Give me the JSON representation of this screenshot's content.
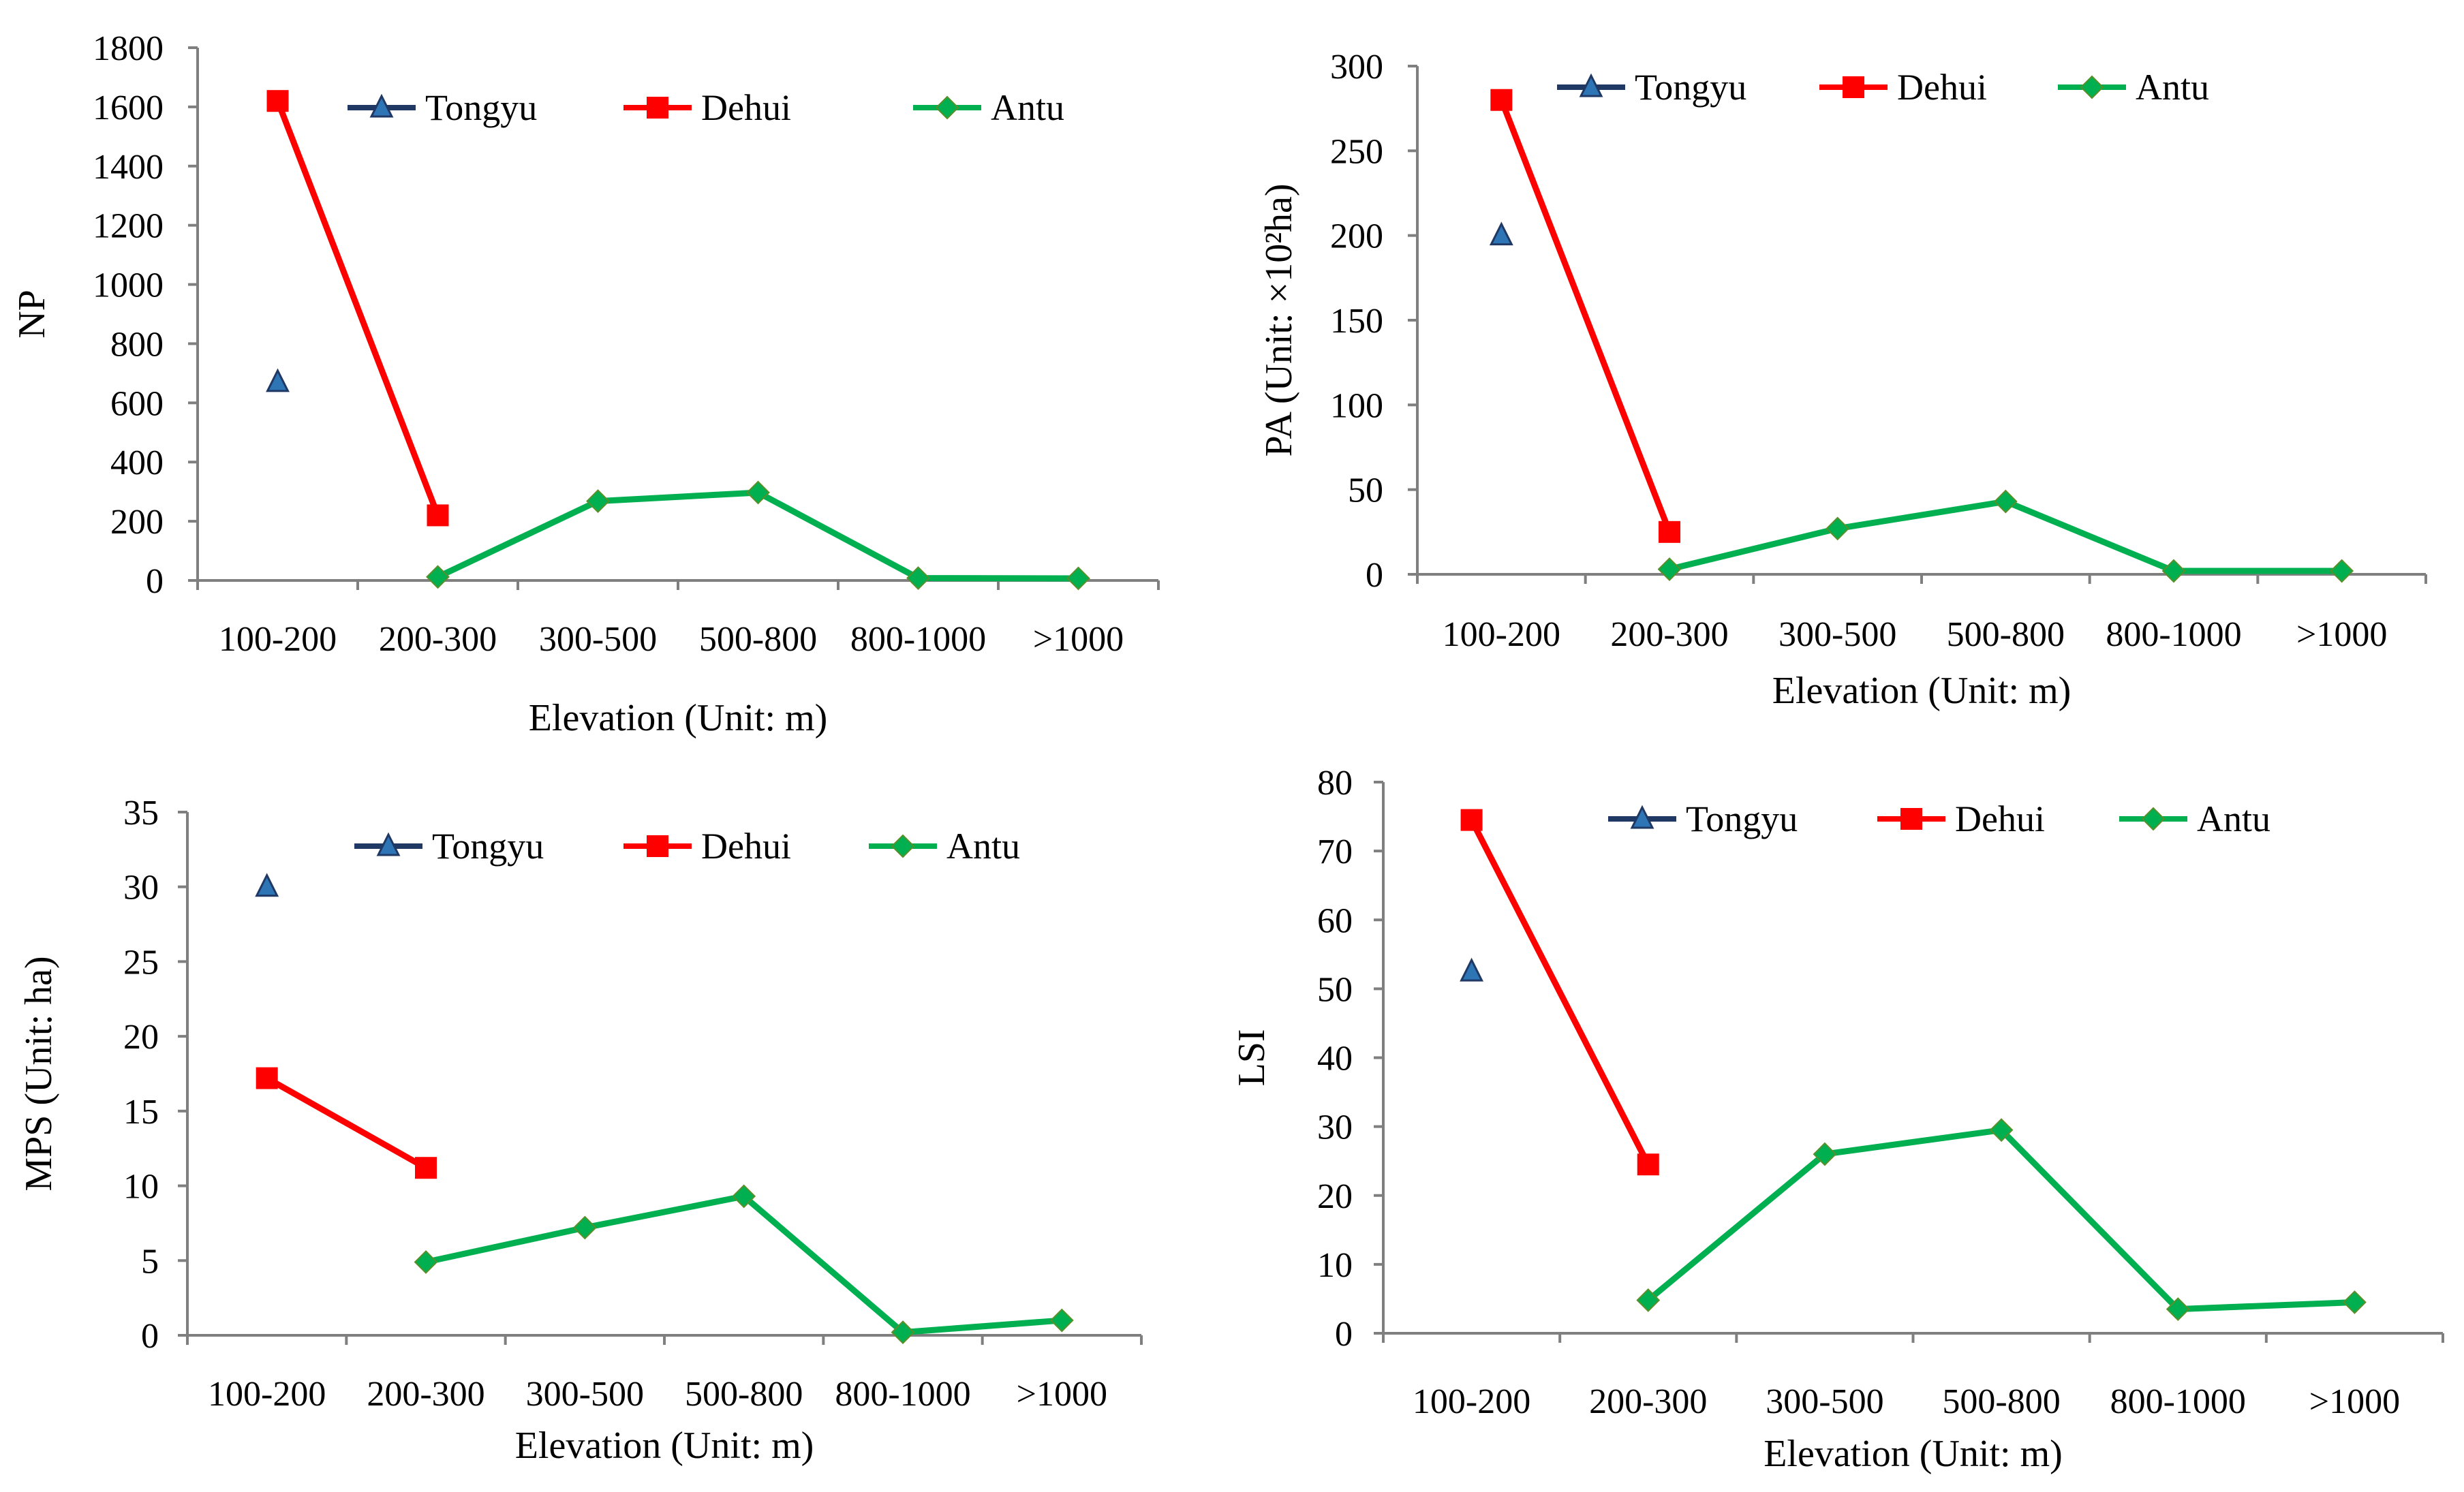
{
  "chart_data": [
    {
      "type": "line",
      "title": "",
      "xlabel": "Elevation (Unit: m)",
      "ylabel": "NP",
      "ylim": [
        0,
        1800
      ],
      "ytick_step": 200,
      "yticks": [
        "0",
        "200",
        "400",
        "600",
        "800",
        "1000",
        "1200",
        "1400",
        "1600",
        "1800"
      ],
      "categories": [
        "100-200",
        "200-300",
        "300-500",
        "500-800",
        "800-1000",
        ">1000"
      ],
      "legend_position": "top",
      "series": [
        {
          "name": "Tongyu",
          "color": "#2e75b6",
          "marker": "triangle",
          "values": [
            670,
            null,
            null,
            null,
            null,
            null
          ]
        },
        {
          "name": "Dehui",
          "color": "#ff0000",
          "marker": "square",
          "values": [
            1620,
            220,
            null,
            null,
            null,
            null
          ]
        },
        {
          "name": "Antu",
          "color": "#00b050",
          "marker": "diamond",
          "values": [
            null,
            12,
            268,
            297,
            8,
            7
          ]
        }
      ]
    },
    {
      "type": "line",
      "title": "",
      "xlabel": "Elevation (Unit: m)",
      "ylabel": "PA (Unit: ×10²ha)",
      "ylim": [
        0,
        300
      ],
      "ytick_step": 50,
      "yticks": [
        "0",
        "50",
        "100",
        "150",
        "200",
        "250",
        "300"
      ],
      "categories": [
        "100-200",
        "200-300",
        "300-500",
        "500-800",
        "800-1000",
        ">1000"
      ],
      "legend_position": "top",
      "series": [
        {
          "name": "Tongyu",
          "color": "#2e75b6",
          "marker": "triangle",
          "values": [
            200,
            null,
            null,
            null,
            null,
            null
          ]
        },
        {
          "name": "Dehui",
          "color": "#ff0000",
          "marker": "square",
          "values": [
            280,
            25,
            null,
            null,
            null,
            null
          ]
        },
        {
          "name": "Antu",
          "color": "#00b050",
          "marker": "diamond",
          "values": [
            null,
            3,
            27,
            43,
            2,
            2
          ]
        }
      ]
    },
    {
      "type": "line",
      "title": "",
      "xlabel": "Elevation (Unit: m)",
      "ylabel": "MPS (Unit: ha)",
      "ylim": [
        0,
        35
      ],
      "ytick_step": 5,
      "yticks": [
        "0",
        "5",
        "10",
        "15",
        "20",
        "25",
        "30",
        "35"
      ],
      "categories": [
        "100-200",
        "200-300",
        "300-500",
        "500-800",
        "800-1000",
        ">1000"
      ],
      "legend_position": "top",
      "series": [
        {
          "name": "Tongyu",
          "color": "#2e75b6",
          "marker": "triangle",
          "values": [
            30,
            null,
            null,
            null,
            null,
            null
          ]
        },
        {
          "name": "Dehui",
          "color": "#ff0000",
          "marker": "square",
          "values": [
            17.2,
            11.2,
            null,
            null,
            null,
            null
          ]
        },
        {
          "name": "Antu",
          "color": "#00b050",
          "marker": "diamond",
          "values": [
            null,
            4.9,
            7.2,
            9.3,
            0.2,
            1.0
          ]
        }
      ]
    },
    {
      "type": "line",
      "title": "",
      "xlabel": "Elevation (Unit: m)",
      "ylabel": "LSI",
      "ylim": [
        0,
        80
      ],
      "ytick_step": 10,
      "yticks": [
        "0",
        "10",
        "20",
        "30",
        "40",
        "50",
        "60",
        "70",
        "80"
      ],
      "categories": [
        "100-200",
        "200-300",
        "300-500",
        "500-800",
        "800-1000",
        ">1000"
      ],
      "legend_position": "top",
      "series": [
        {
          "name": "Tongyu",
          "color": "#2e75b6",
          "marker": "triangle",
          "values": [
            52.5,
            null,
            null,
            null,
            null,
            null
          ]
        },
        {
          "name": "Dehui",
          "color": "#ff0000",
          "marker": "square",
          "values": [
            74.5,
            24.5,
            null,
            null,
            null,
            null
          ]
        },
        {
          "name": "Antu",
          "color": "#00b050",
          "marker": "diamond",
          "values": [
            null,
            4.8,
            26,
            29.5,
            3.5,
            4.5
          ]
        }
      ]
    }
  ]
}
